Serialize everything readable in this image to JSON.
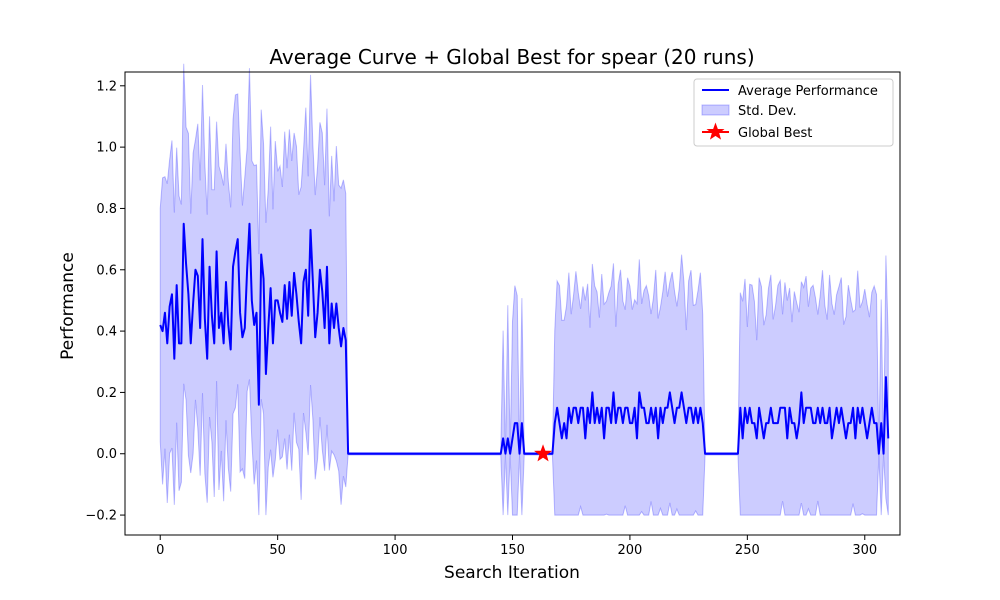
{
  "chart_data": {
    "type": "line",
    "title": "Average Curve + Global Best for spear (20 runs)",
    "xlabel": "Search Iteration",
    "ylabel": "Performance",
    "xlim": [
      -15,
      315
    ],
    "ylim": [
      -0.265,
      1.245
    ],
    "xticks": [
      0,
      50,
      100,
      150,
      200,
      250,
      300
    ],
    "yticks": [
      -0.2,
      0.0,
      0.2,
      0.4,
      0.6,
      0.8,
      1.0,
      1.2
    ],
    "ytick_labels": [
      "−0.2",
      "0.0",
      "0.2",
      "0.4",
      "0.6",
      "0.8",
      "1.0",
      "1.2"
    ],
    "grid": false,
    "legend_position": "top-right",
    "legend": [
      "Average Performance",
      "Std. Dev.",
      "Global Best"
    ],
    "colors": {
      "mean": "#0000ff",
      "band": "#0000ff",
      "star": "#ff0000"
    },
    "series": [
      {
        "name": "Average Performance",
        "x_start": 0,
        "values": [
          0.42,
          0.4,
          0.46,
          0.36,
          0.48,
          0.52,
          0.31,
          0.55,
          0.36,
          0.36,
          0.75,
          0.62,
          0.52,
          0.36,
          0.49,
          0.6,
          0.58,
          0.41,
          0.7,
          0.44,
          0.31,
          0.61,
          0.45,
          0.36,
          0.66,
          0.41,
          0.46,
          0.36,
          0.56,
          0.42,
          0.34,
          0.61,
          0.66,
          0.7,
          0.46,
          0.38,
          0.41,
          0.6,
          0.75,
          0.5,
          0.42,
          0.46,
          0.16,
          0.65,
          0.57,
          0.26,
          0.41,
          0.54,
          0.36,
          0.5,
          0.5,
          0.46,
          0.43,
          0.55,
          0.44,
          0.56,
          0.45,
          0.59,
          0.52,
          0.43,
          0.36,
          0.56,
          0.6,
          0.45,
          0.73,
          0.56,
          0.38,
          0.46,
          0.6,
          0.53,
          0.41,
          0.61,
          0.36,
          0.49,
          0.41,
          0.49,
          0.41,
          0.35,
          0.41,
          0.37,
          0.0,
          0.0,
          0.0,
          0.0,
          0.0,
          0.0,
          0.0,
          0.0,
          0.0,
          0.0,
          0.0,
          0.0,
          0.0,
          0.0,
          0.0,
          0.0,
          0.0,
          0.0,
          0.0,
          0.0,
          0.0,
          0.0,
          0.0,
          0.0,
          0.0,
          0.0,
          0.0,
          0.0,
          0.0,
          0.0,
          0.0,
          0.0,
          0.0,
          0.0,
          0.0,
          0.0,
          0.0,
          0.0,
          0.0,
          0.0,
          0.0,
          0.0,
          0.0,
          0.0,
          0.0,
          0.0,
          0.0,
          0.0,
          0.0,
          0.0,
          0.0,
          0.0,
          0.0,
          0.0,
          0.0,
          0.0,
          0.0,
          0.0,
          0.0,
          0.0,
          0.0,
          0.0,
          0.0,
          0.0,
          0.0,
          0.0,
          0.05,
          0.0,
          0.05,
          0.0,
          0.05,
          0.1,
          0.1,
          0.0,
          0.1,
          0.0,
          0.0,
          0.0,
          0.0,
          0.0,
          0.0,
          0.0,
          0.0,
          0.0,
          0.0,
          0.0,
          0.0,
          0.0,
          0.1,
          0.15,
          0.1,
          0.05,
          0.1,
          0.05,
          0.15,
          0.1,
          0.15,
          0.15,
          0.1,
          0.15,
          0.15,
          0.05,
          0.15,
          0.1,
          0.2,
          0.1,
          0.15,
          0.1,
          0.15,
          0.05,
          0.15,
          0.15,
          0.1,
          0.2,
          0.1,
          0.15,
          0.15,
          0.1,
          0.15,
          0.15,
          0.1,
          0.1,
          0.15,
          0.05,
          0.2,
          0.15,
          0.15,
          0.1,
          0.1,
          0.15,
          0.1,
          0.15,
          0.05,
          0.15,
          0.1,
          0.15,
          0.15,
          0.2,
          0.15,
          0.1,
          0.15,
          0.15,
          0.2,
          0.15,
          0.1,
          0.15,
          0.15,
          0.1,
          0.15,
          0.1,
          0.15,
          0.1,
          0.0,
          0.0,
          0.0,
          0.0,
          0.0,
          0.0,
          0.0,
          0.0,
          0.0,
          0.0,
          0.0,
          0.0,
          0.0,
          0.0,
          0.0,
          0.15,
          0.05,
          0.15,
          0.1,
          0.15,
          0.1,
          0.1,
          0.05,
          0.15,
          0.1,
          0.05,
          0.1,
          0.1,
          0.15,
          0.1,
          0.1,
          0.1,
          0.15,
          0.15,
          0.15,
          0.05,
          0.15,
          0.1,
          0.1,
          0.05,
          0.1,
          0.2,
          0.1,
          0.15,
          0.15,
          0.15,
          0.1,
          0.1,
          0.15,
          0.1,
          0.15,
          0.1,
          0.1,
          0.15,
          0.05,
          0.1,
          0.15,
          0.1,
          0.15,
          0.1,
          0.05,
          0.1,
          0.1,
          0.15,
          0.05,
          0.15,
          0.1,
          0.15,
          0.1,
          0.05,
          0.1,
          0.15,
          0.1,
          0.1,
          0.0,
          0.1,
          0.0,
          0.25,
          0.05
        ]
      }
    ],
    "band": {
      "name": "Std. Dev.",
      "note": "mean ± standard deviation"
    },
    "global_best": {
      "name": "Global Best",
      "x": 163,
      "y": 0.0
    }
  }
}
